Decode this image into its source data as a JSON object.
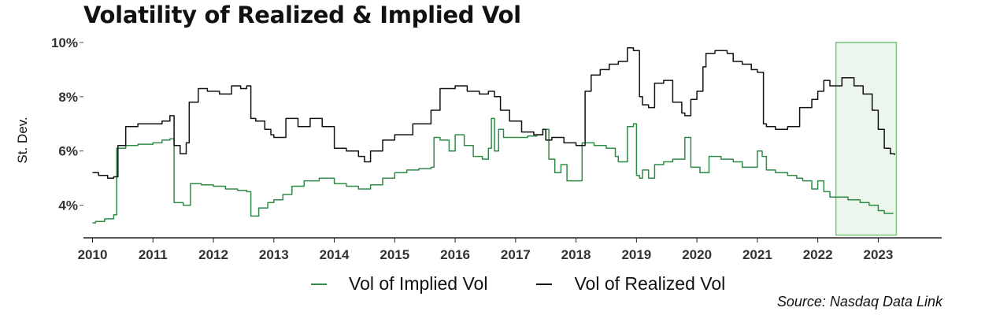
{
  "chart_data": {
    "type": "line",
    "title": "Volatility of Realized & Implied Vol",
    "ylabel": "St. Dev.",
    "xlabel": "",
    "xlim": [
      2009.85,
      2024.05
    ],
    "ylim": [
      2.8,
      10.2
    ],
    "x_ticks": [
      2010,
      2011,
      2012,
      2013,
      2014,
      2015,
      2016,
      2017,
      2018,
      2019,
      2020,
      2021,
      2022,
      2023
    ],
    "x_tick_labels": [
      "2010",
      "2011",
      "2012",
      "2013",
      "2014",
      "2015",
      "2016",
      "2017",
      "2018",
      "2019",
      "2020",
      "2021",
      "2022",
      "2023"
    ],
    "y_ticks": [
      4,
      6,
      8,
      10
    ],
    "y_tick_labels": [
      "4%",
      "6%",
      "8%",
      "10%"
    ],
    "grid": false,
    "legend_position": "bottom",
    "highlight": {
      "x_range": [
        2022.3,
        2023.3
      ],
      "y_range": [
        2.9,
        10
      ],
      "color": "#7dc47d"
    },
    "series": [
      {
        "name": "Vol of Implied Vol",
        "color": "#2e8b47",
        "x": [
          2010.0,
          2010.05,
          2010.2,
          2010.35,
          2010.4,
          2010.55,
          2010.75,
          2011.0,
          2011.15,
          2011.28,
          2011.35,
          2011.5,
          2011.62,
          2011.8,
          2012.0,
          2012.2,
          2012.4,
          2012.55,
          2012.62,
          2012.75,
          2012.9,
          2013.0,
          2013.15,
          2013.3,
          2013.5,
          2013.75,
          2014.0,
          2014.2,
          2014.4,
          2014.6,
          2014.8,
          2015.0,
          2015.2,
          2015.4,
          2015.6,
          2015.65,
          2015.75,
          2015.9,
          2016.0,
          2016.15,
          2016.3,
          2016.45,
          2016.55,
          2016.6,
          2016.65,
          2016.72,
          2016.8,
          2017.0,
          2017.2,
          2017.35,
          2017.45,
          2017.55,
          2017.65,
          2017.75,
          2017.85,
          2018.0,
          2018.1,
          2018.15,
          2018.3,
          2018.5,
          2018.65,
          2018.7,
          2018.85,
          2018.95,
          2019.0,
          2019.05,
          2019.1,
          2019.2,
          2019.3,
          2019.45,
          2019.6,
          2019.75,
          2019.8,
          2019.9,
          2020.0,
          2020.05,
          2020.2,
          2020.4,
          2020.6,
          2020.75,
          2020.9,
          2021.0,
          2021.08,
          2021.15,
          2021.3,
          2021.5,
          2021.65,
          2021.75,
          2021.9,
          2022.0,
          2022.1,
          2022.2,
          2022.3,
          2022.5,
          2022.7,
          2022.85,
          2023.0,
          2023.1,
          2023.25
        ],
        "values": [
          3.35,
          3.4,
          3.5,
          3.65,
          6.1,
          6.2,
          6.25,
          6.3,
          6.4,
          6.45,
          4.1,
          4.0,
          4.8,
          4.75,
          4.7,
          4.6,
          4.55,
          4.5,
          3.6,
          3.9,
          4.1,
          4.2,
          4.4,
          4.7,
          4.9,
          5.0,
          4.8,
          4.7,
          4.6,
          4.75,
          5.0,
          5.2,
          5.3,
          5.35,
          5.4,
          6.5,
          6.4,
          6.0,
          6.6,
          6.2,
          5.8,
          5.7,
          6.1,
          7.2,
          6.0,
          6.8,
          6.5,
          6.5,
          6.55,
          6.6,
          6.8,
          5.7,
          5.2,
          5.5,
          4.9,
          4.9,
          6.3,
          6.3,
          6.2,
          6.1,
          5.8,
          5.6,
          6.9,
          7.0,
          5.1,
          5.0,
          5.3,
          5.0,
          5.5,
          5.6,
          5.7,
          5.7,
          6.5,
          5.4,
          5.4,
          5.2,
          5.8,
          5.7,
          5.6,
          5.4,
          5.4,
          6.0,
          5.8,
          5.3,
          5.2,
          5.1,
          5.0,
          4.9,
          4.6,
          4.9,
          4.5,
          4.3,
          4.3,
          4.2,
          4.1,
          4.0,
          3.8,
          3.7,
          3.7
        ]
      },
      {
        "name": "Vol of Realized Vol",
        "color": "#111111",
        "x": [
          2010.0,
          2010.1,
          2010.25,
          2010.35,
          2010.42,
          2010.55,
          2010.75,
          2011.0,
          2011.15,
          2011.28,
          2011.35,
          2011.45,
          2011.55,
          2011.6,
          2011.75,
          2011.9,
          2012.1,
          2012.3,
          2012.45,
          2012.55,
          2012.62,
          2012.7,
          2012.85,
          2012.95,
          2013.0,
          2013.2,
          2013.4,
          2013.6,
          2013.8,
          2014.0,
          2014.2,
          2014.4,
          2014.5,
          2014.6,
          2014.8,
          2015.0,
          2015.3,
          2015.6,
          2015.75,
          2015.9,
          2016.0,
          2016.2,
          2016.4,
          2016.55,
          2016.65,
          2016.75,
          2016.9,
          2017.1,
          2017.3,
          2017.45,
          2017.5,
          2017.6,
          2017.8,
          2018.0,
          2018.1,
          2018.15,
          2018.25,
          2018.4,
          2018.55,
          2018.7,
          2018.85,
          2018.95,
          2019.05,
          2019.1,
          2019.2,
          2019.3,
          2019.45,
          2019.6,
          2019.75,
          2019.8,
          2019.9,
          2020.0,
          2020.1,
          2020.15,
          2020.3,
          2020.5,
          2020.6,
          2020.75,
          2020.9,
          2021.0,
          2021.1,
          2021.15,
          2021.3,
          2021.5,
          2021.7,
          2021.9,
          2022.0,
          2022.1,
          2022.2,
          2022.3,
          2022.4,
          2022.6,
          2022.75,
          2022.9,
          2023.0,
          2023.1,
          2023.2,
          2023.27
        ],
        "values": [
          5.2,
          5.1,
          5.0,
          5.05,
          6.2,
          6.9,
          7.0,
          7.0,
          7.1,
          7.3,
          6.2,
          5.9,
          6.3,
          7.8,
          8.3,
          8.2,
          8.1,
          8.4,
          8.3,
          8.4,
          7.2,
          7.1,
          6.8,
          6.6,
          6.5,
          7.2,
          6.9,
          7.2,
          6.9,
          6.1,
          6.0,
          5.8,
          5.6,
          6.0,
          6.4,
          6.6,
          7.0,
          7.5,
          8.3,
          8.3,
          8.4,
          8.2,
          8.1,
          8.2,
          8.0,
          7.5,
          7.1,
          6.7,
          6.6,
          6.8,
          6.4,
          6.5,
          6.3,
          6.2,
          6.2,
          8.2,
          8.8,
          9.0,
          9.2,
          9.3,
          9.8,
          9.7,
          8.0,
          7.7,
          7.6,
          8.5,
          8.6,
          7.8,
          7.4,
          7.3,
          7.9,
          8.2,
          9.1,
          9.6,
          9.7,
          9.6,
          9.3,
          9.2,
          9.0,
          8.9,
          7.0,
          6.9,
          6.8,
          6.9,
          7.6,
          7.9,
          8.2,
          8.6,
          8.4,
          8.4,
          8.7,
          8.4,
          8.1,
          7.5,
          6.8,
          6.1,
          5.9,
          5.85
        ]
      }
    ]
  },
  "legend": {
    "items": [
      {
        "label": "Vol of Implied Vol",
        "color": "#2e8b47"
      },
      {
        "label": "Vol of Realized Vol",
        "color": "#111111"
      }
    ]
  },
  "source": "Source: Nasdaq Data Link"
}
